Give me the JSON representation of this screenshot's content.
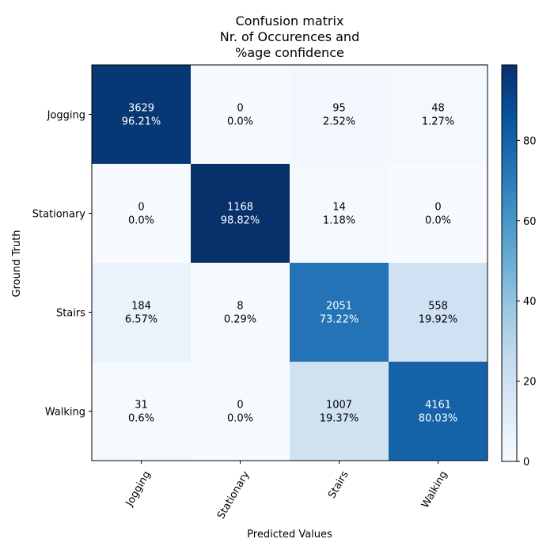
{
  "chart_data": {
    "type": "heatmap",
    "title_lines": [
      "Confusion matrix",
      "Nr. of Occurences and",
      "%age confidence"
    ],
    "xlabel": "Predicted Values",
    "ylabel": "Ground Truth",
    "x_categories": [
      "Jogging",
      "Stationary",
      "Stairs",
      "Walking"
    ],
    "y_categories": [
      "Jogging",
      "Stationary",
      "Stairs",
      "Walking"
    ],
    "counts": [
      [
        3629,
        0,
        95,
        48
      ],
      [
        0,
        1168,
        14,
        0
      ],
      [
        184,
        8,
        2051,
        558
      ],
      [
        31,
        0,
        1007,
        4161
      ]
    ],
    "percent_labels": [
      [
        "96.21%",
        "0.0%",
        "2.52%",
        "1.27%"
      ],
      [
        "0.0%",
        "98.82%",
        "1.18%",
        "0.0%"
      ],
      [
        "6.57%",
        "0.29%",
        "73.22%",
        "19.92%"
      ],
      [
        "0.6%",
        "0.0%",
        "19.37%",
        "80.03%"
      ]
    ],
    "percent_values": [
      [
        96.21,
        0.0,
        2.52,
        1.27
      ],
      [
        0.0,
        98.82,
        1.18,
        0.0
      ],
      [
        6.57,
        0.29,
        73.22,
        19.92
      ],
      [
        0.6,
        0.0,
        19.37,
        80.03
      ]
    ],
    "colorbar": {
      "colormap": "Blues",
      "min": 0,
      "max": 98.82,
      "ticks": [
        0,
        20,
        40,
        60,
        80
      ]
    },
    "colors": {
      "text_dark": "#000000",
      "text_light": "#ffffff",
      "axis": "#000000"
    },
    "grid": false,
    "x_tick_rotation": "diagonal"
  }
}
